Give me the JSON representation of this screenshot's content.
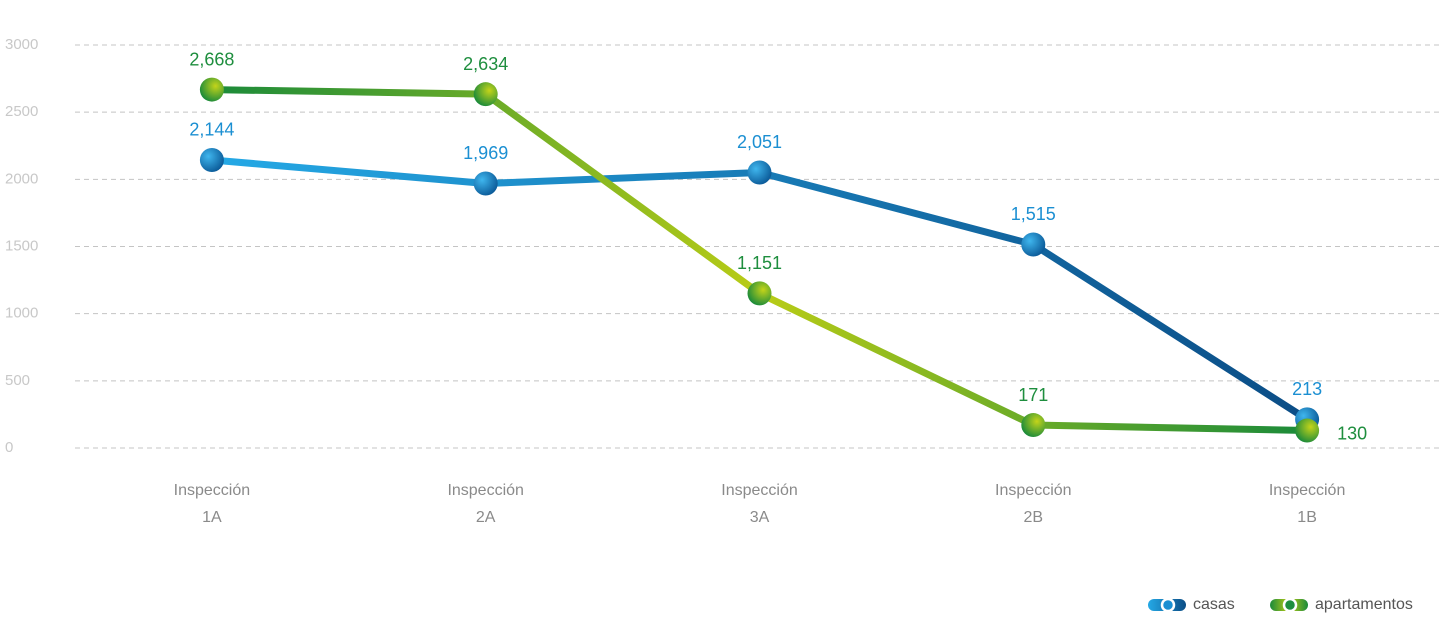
{
  "chart_data": {
    "type": "line",
    "categories": [
      "Inspección 1A",
      "Inspección 2A",
      "Inspección 3A",
      "Inspección 2B",
      "Inspección 1B"
    ],
    "series": [
      {
        "name": "casas",
        "color": "#1b8fd2",
        "values": [
          2144,
          1969,
          2051,
          1515,
          213
        ],
        "value_labels": [
          "2,144",
          "1,969",
          "2,051",
          "1,515",
          "213"
        ]
      },
      {
        "name": "apartamentos",
        "color": "#1e8e3e",
        "values": [
          2668,
          2634,
          1151,
          171,
          130
        ],
        "value_labels": [
          "2,668",
          "2,634",
          "1,151",
          "171",
          "130"
        ]
      }
    ],
    "ylim": [
      0,
      3000
    ],
    "yticks": [
      0,
      500,
      1000,
      1500,
      2000,
      2500,
      3000
    ],
    "grid": true,
    "legend": "bottom-right"
  }
}
